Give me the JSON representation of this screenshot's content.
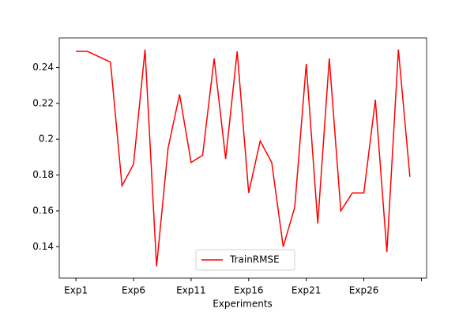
{
  "chart_data": {
    "type": "line",
    "xlabel": "Experiments",
    "categories": [
      "Exp1",
      null,
      null,
      null,
      null,
      "Exp6",
      null,
      null,
      null,
      null,
      "Exp11",
      null,
      null,
      null,
      null,
      "Exp16",
      null,
      null,
      null,
      null,
      "Exp21",
      null,
      null,
      null,
      null,
      "Exp26",
      null,
      null,
      null,
      null
    ],
    "series": [
      {
        "name": "TrainRMSE",
        "color": "#ff0000",
        "values": [
          0.249,
          0.249,
          0.246,
          0.243,
          0.174,
          0.186,
          0.25,
          0.129,
          0.195,
          0.225,
          0.187,
          0.191,
          0.245,
          0.189,
          0.249,
          0.17,
          0.199,
          0.187,
          0.14,
          0.162,
          0.242,
          0.153,
          0.245,
          0.16,
          0.17,
          0.17,
          0.222,
          0.137,
          0.25,
          0.179
        ]
      }
    ],
    "xlim": [
      -1.45,
      30.45
    ],
    "xticks": [
      0,
      5,
      10,
      15,
      20,
      25,
      30
    ],
    "ylim": [
      0.1225,
      0.2565
    ],
    "yticks": [
      0.14,
      0.16,
      0.18,
      0.2,
      0.22,
      0.24
    ],
    "legend": "lower center"
  }
}
